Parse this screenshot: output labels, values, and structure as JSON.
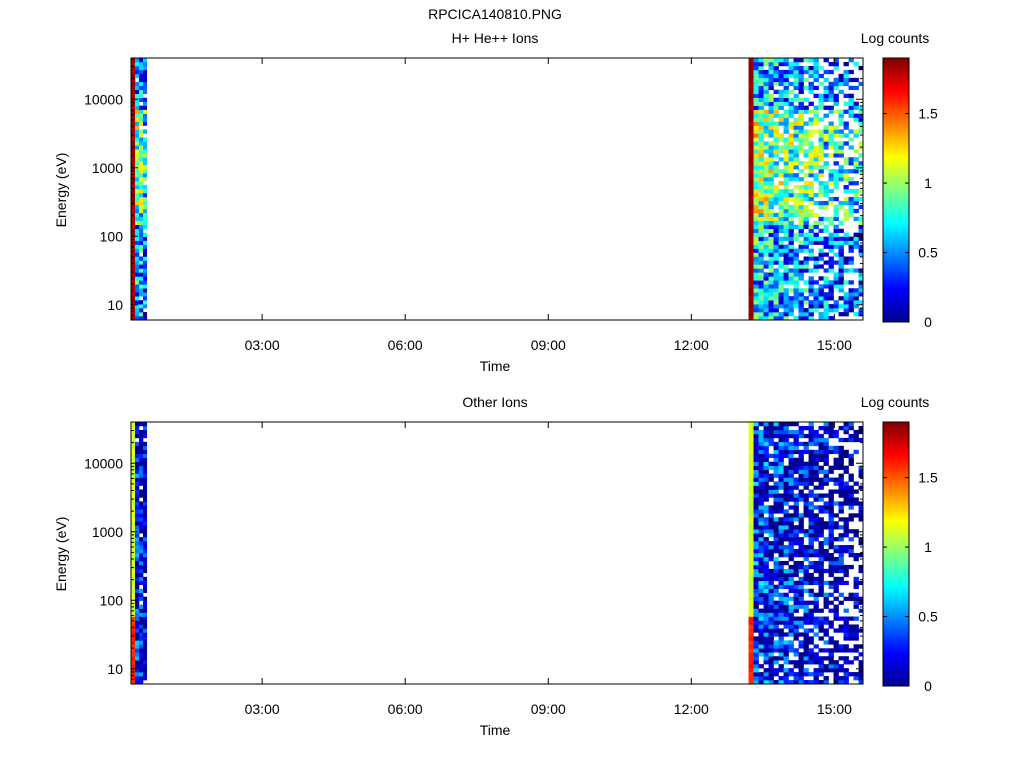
{
  "figure_title": "RPCICA140810.PNG",
  "colormap": [
    "#00008f",
    "#0000ff",
    "#0080ff",
    "#00ffff",
    "#80ff80",
    "#ffff00",
    "#ff8000",
    "#ff0000",
    "#800000"
  ],
  "chart_data": [
    {
      "type": "heatmap",
      "title": "H+ He++ Ions",
      "xlabel": "Time",
      "ylabel": "Energy (eV)",
      "x_ticks": [
        "03:00",
        "06:00",
        "09:00",
        "12:00",
        "15:00"
      ],
      "x_tick_hours": [
        3,
        6,
        9,
        12,
        15
      ],
      "xlim_hours": [
        0.25,
        15.6
      ],
      "y_scale": "log",
      "y_ticks": [
        "10",
        "100",
        "1000",
        "10000"
      ],
      "y_tick_values": [
        10,
        100,
        1000,
        10000
      ],
      "ylim": [
        6,
        40000
      ],
      "colorbar_label": "Log counts",
      "colorbar_ticks": [
        "0",
        "0.5",
        "1",
        "1.5"
      ],
      "colorbar_tick_values": [
        0,
        0.5,
        1,
        1.5
      ],
      "color_range": [
        0,
        1.9
      ],
      "data_intervals_hours": [
        [
          0.25,
          0.58
        ],
        [
          13.2,
          15.6
        ]
      ],
      "seed": 11
    },
    {
      "type": "heatmap",
      "title": "Other Ions",
      "xlabel": "Time",
      "ylabel": "Energy (eV)",
      "x_ticks": [
        "03:00",
        "06:00",
        "09:00",
        "12:00",
        "15:00"
      ],
      "x_tick_hours": [
        3,
        6,
        9,
        12,
        15
      ],
      "xlim_hours": [
        0.25,
        15.6
      ],
      "y_scale": "log",
      "y_ticks": [
        "10",
        "100",
        "1000",
        "10000"
      ],
      "y_tick_values": [
        10,
        100,
        1000,
        10000
      ],
      "ylim": [
        6,
        40000
      ],
      "colorbar_label": "Log counts",
      "colorbar_ticks": [
        "0",
        "0.5",
        "1",
        "1.5"
      ],
      "colorbar_tick_values": [
        0,
        0.5,
        1,
        1.5
      ],
      "color_range": [
        0,
        1.9
      ],
      "data_intervals_hours": [
        [
          0.25,
          0.58
        ],
        [
          13.2,
          15.6
        ]
      ],
      "seed": 29
    }
  ]
}
